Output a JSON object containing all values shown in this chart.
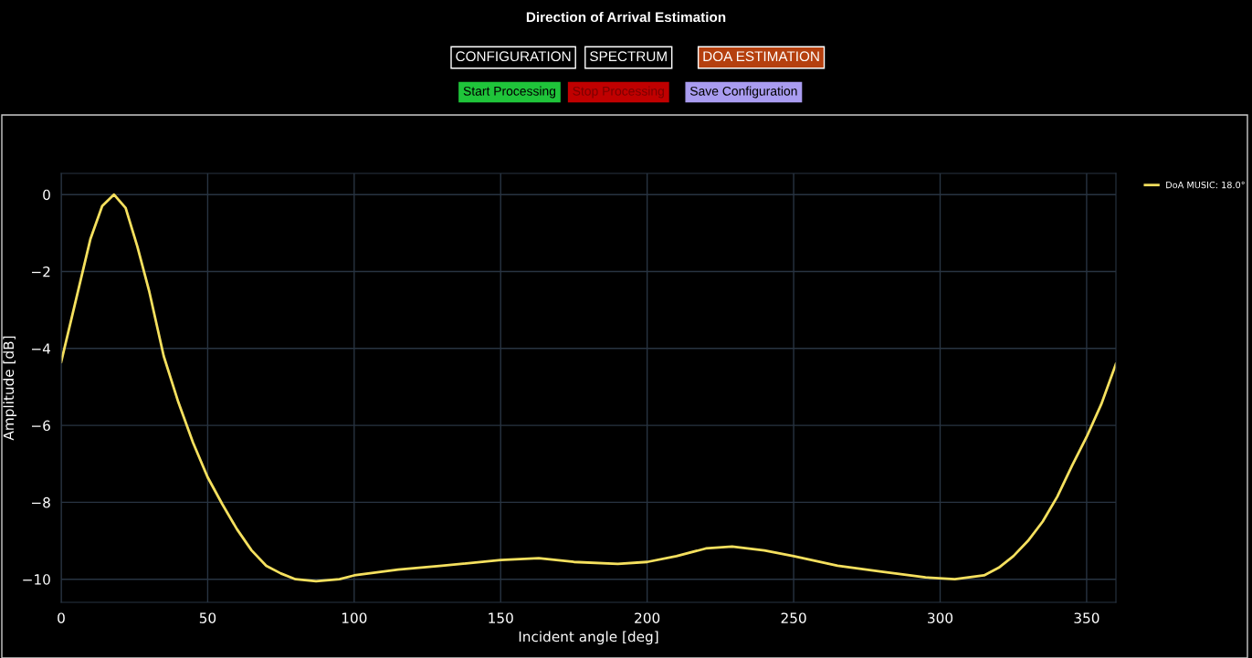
{
  "chart_data": {
    "type": "line",
    "title": "Direction of Arrival Estimation",
    "xlabel": "Incident angle [deg]",
    "ylabel": "Amplitude [dB]",
    "annotations": [
      "CONFIGURATION",
      "SPECTRUM",
      "DOA ESTIMATION",
      "Start Processing",
      "Stop Processing",
      "Save Configuration"
    ],
    "x": [
      0,
      5,
      10,
      14,
      18,
      22,
      26,
      30,
      35,
      40,
      45,
      50,
      55,
      60,
      65,
      70,
      75,
      80,
      87,
      95,
      100,
      115,
      130,
      150,
      163,
      175,
      190,
      200,
      210,
      220,
      229,
      240,
      250,
      265,
      280,
      295,
      305,
      315,
      320,
      325,
      330,
      335,
      340,
      345,
      350,
      355,
      360
    ],
    "series": [
      {
        "name": "DoA MUSIC: 18.0°",
        "color": "#f5e05e",
        "values": [
          -4.35,
          -2.75,
          -1.15,
          -0.3,
          0,
          -0.35,
          -1.35,
          -2.5,
          -4.2,
          -5.4,
          -6.45,
          -7.35,
          -8.05,
          -8.7,
          -9.25,
          -9.65,
          -9.85,
          -10.0,
          -10.05,
          -10.0,
          -9.9,
          -9.75,
          -9.65,
          -9.5,
          -9.45,
          -9.55,
          -9.6,
          -9.55,
          -9.4,
          -9.2,
          -9.15,
          -9.25,
          -9.4,
          -9.65,
          -9.8,
          -9.95,
          -10.0,
          -9.9,
          -9.7,
          -9.4,
          -9.0,
          -8.5,
          -7.85,
          -7.05,
          -6.3,
          -5.45,
          -4.4
        ]
      }
    ],
    "xlim": [
      0,
      360
    ],
    "xticks": [
      0,
      50,
      100,
      150,
      200,
      250,
      300,
      350
    ],
    "ylim": [
      -10.6,
      0.55
    ],
    "yticks": [
      0,
      {
        "value": -2,
        "label": "−2"
      },
      {
        "value": -4,
        "label": "−4"
      },
      {
        "value": -6,
        "label": "−6"
      },
      {
        "value": -8,
        "label": "−8"
      },
      {
        "value": -10,
        "label": "−10"
      }
    ],
    "grid": true,
    "legend": "top right",
    "marker": "none",
    "line_style": "solid"
  }
}
